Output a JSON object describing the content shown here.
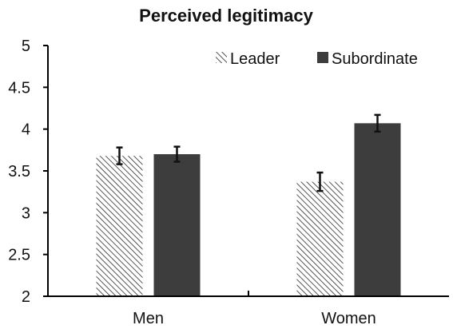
{
  "chart_data": {
    "type": "bar",
    "title": "Perceived legitimacy",
    "categories": [
      "Men",
      "Women"
    ],
    "series": [
      {
        "name": "Leader",
        "values": [
          3.68,
          3.37
        ],
        "error": [
          0.1,
          0.11
        ],
        "fill": "hatch"
      },
      {
        "name": "Subordinate",
        "values": [
          3.7,
          4.07
        ],
        "error": [
          0.09,
          0.1
        ],
        "color": "#3d3d3d"
      }
    ],
    "ylim": [
      2,
      5
    ],
    "yticks": [
      "2",
      "2.5",
      "3",
      "3.5",
      "4",
      "4.5",
      "5"
    ],
    "xlabel": "",
    "ylabel": "",
    "grid": false,
    "legend_position": "top-right"
  }
}
